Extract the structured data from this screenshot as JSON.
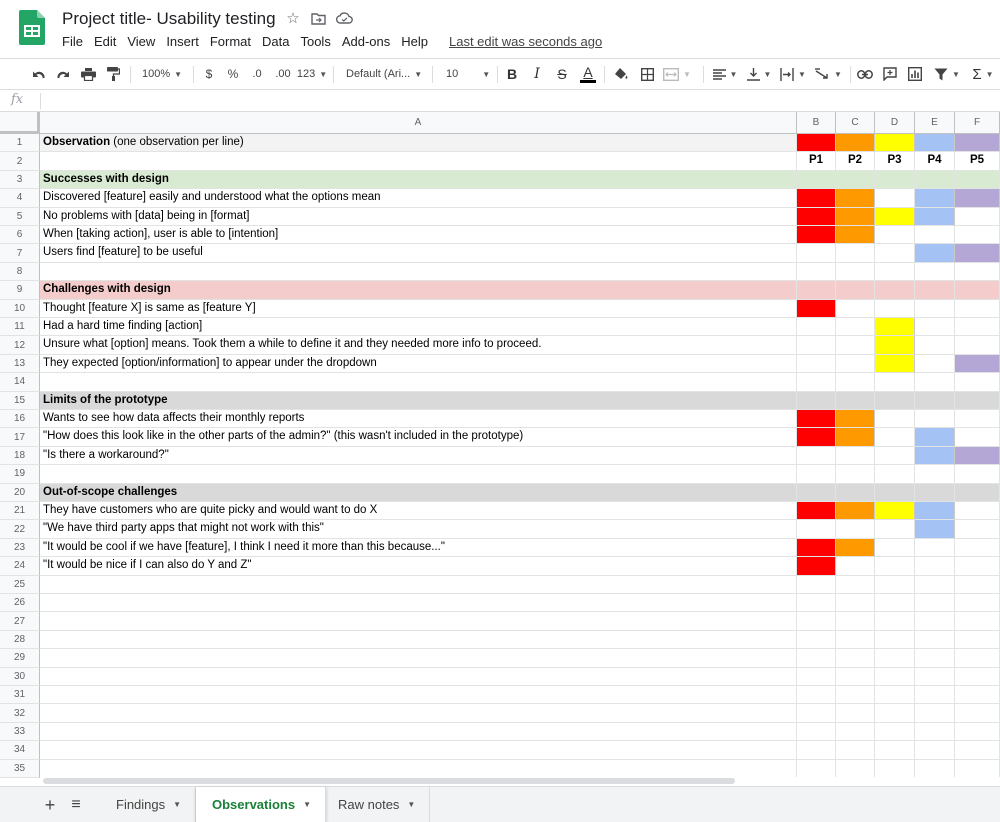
{
  "app": {
    "title": "Project title- Usability testing",
    "last_edit": "Last edit was seconds ago",
    "menu": [
      "File",
      "Edit",
      "View",
      "Insert",
      "Format",
      "Data",
      "Tools",
      "Add-ons",
      "Help"
    ]
  },
  "toolbar": {
    "zoom": "100%",
    "currency": "$",
    "percent": "%",
    "decrease_decimals": ".0",
    "increase_decimals": ".00",
    "more_formats": "123",
    "font": "Default (Ari...",
    "font_size": "10",
    "bold": "B",
    "italic": "I",
    "strikethrough": "S",
    "text_color": "A",
    "sum": "Σ"
  },
  "formula_bar": {
    "label": "fx",
    "value": ""
  },
  "colors": {
    "red": "#ff0000",
    "orange": "#ff9900",
    "yellow": "#ffff00",
    "blue": "#a4c2f4",
    "purple": "#b4a7d6",
    "green_band": "#d9ead3",
    "red_band": "#f4cccc",
    "gray_band": "#d9d9d9",
    "header_gray": "#f3f3f3",
    "active_tab": "#188038"
  },
  "grid": {
    "columns": [
      "A",
      "B",
      "C",
      "D",
      "E",
      "F"
    ],
    "row_numbers": [
      "1",
      "2",
      "3",
      "4",
      "5",
      "6",
      "7",
      "8",
      "9",
      "10",
      "11",
      "12",
      "13",
      "14",
      "15",
      "16",
      "17",
      "18",
      "19",
      "20",
      "21",
      "22",
      "23",
      "24",
      "25",
      "26",
      "27",
      "28",
      "29",
      "30",
      "31",
      "32",
      "33",
      "34",
      "35"
    ],
    "participants": [
      "P1",
      "P2",
      "P3",
      "P4",
      "P5"
    ],
    "header_cell": {
      "bold": "Observation",
      "rest": " (one observation per line)"
    },
    "rows": [
      {
        "text": "",
        "type": "header",
        "marks": [
          1,
          1,
          1,
          1,
          1
        ]
      },
      {
        "text": "",
        "type": "participants",
        "marks": [
          0,
          0,
          0,
          0,
          0
        ]
      },
      {
        "text": "Successes with design",
        "type": "section-green",
        "marks": [
          0,
          0,
          0,
          0,
          0
        ]
      },
      {
        "text": "Discovered [feature] easily and understood what the options mean",
        "type": "normal",
        "marks": [
          1,
          1,
          0,
          1,
          1
        ]
      },
      {
        "text": "No problems with [data] being in [format]",
        "type": "normal",
        "marks": [
          1,
          1,
          1,
          1,
          0
        ]
      },
      {
        "text": "When [taking action], user is able to [intention]",
        "type": "normal",
        "marks": [
          1,
          1,
          0,
          0,
          0
        ]
      },
      {
        "text": "Users find [feature] to be useful",
        "type": "normal",
        "marks": [
          0,
          0,
          0,
          1,
          1
        ]
      },
      {
        "text": "",
        "type": "normal",
        "marks": [
          0,
          0,
          0,
          0,
          0
        ]
      },
      {
        "text": "Challenges with design",
        "type": "section-red",
        "marks": [
          0,
          0,
          0,
          0,
          0
        ]
      },
      {
        "text": "Thought [feature X] is same as [feature Y]",
        "type": "normal",
        "marks": [
          1,
          0,
          0,
          0,
          0
        ]
      },
      {
        "text": "Had a hard time finding [action]",
        "type": "normal",
        "marks": [
          0,
          0,
          1,
          0,
          0
        ]
      },
      {
        "text": "Unsure what [option] means. Took them a while to define it and they needed more info to proceed.",
        "type": "normal",
        "marks": [
          0,
          0,
          1,
          0,
          0
        ]
      },
      {
        "text": "They expected [option/information] to appear under the dropdown",
        "type": "normal",
        "marks": [
          0,
          0,
          1,
          0,
          1
        ]
      },
      {
        "text": "",
        "type": "normal",
        "marks": [
          0,
          0,
          0,
          0,
          0
        ]
      },
      {
        "text": "Limits of the prototype",
        "type": "section-gray",
        "marks": [
          0,
          0,
          0,
          0,
          0
        ]
      },
      {
        "text": "Wants to see how data affects their monthly reports",
        "type": "normal",
        "marks": [
          1,
          1,
          0,
          0,
          0
        ]
      },
      {
        "text": "\"How does this look like in the other parts of the admin?\" (this wasn't included in the prototype)",
        "type": "normal",
        "marks": [
          1,
          1,
          0,
          1,
          0
        ]
      },
      {
        "text": "\"Is there a workaround?\"",
        "type": "normal",
        "marks": [
          0,
          0,
          0,
          1,
          1
        ]
      },
      {
        "text": "",
        "type": "normal",
        "marks": [
          0,
          0,
          0,
          0,
          0
        ]
      },
      {
        "text": "Out-of-scope challenges",
        "type": "section-gray",
        "marks": [
          0,
          0,
          0,
          0,
          0
        ]
      },
      {
        "text": "They have customers who are quite picky and would want to do X",
        "type": "normal",
        "marks": [
          1,
          1,
          1,
          1,
          0
        ]
      },
      {
        "text": "\"We have third party apps that might not work with this\"",
        "type": "normal",
        "marks": [
          0,
          0,
          0,
          1,
          0
        ]
      },
      {
        "text": "\"It would be cool if we have [feature], I think I need it more than this because...\"",
        "type": "normal",
        "marks": [
          1,
          1,
          0,
          0,
          0
        ]
      },
      {
        "text": "\"It would be nice if I can also do Y and Z\"",
        "type": "normal",
        "marks": [
          1,
          0,
          0,
          0,
          0
        ]
      }
    ]
  },
  "sheets": {
    "add_icon": "+",
    "list_icon": "≡",
    "tabs": [
      "Findings",
      "Observations",
      "Raw notes"
    ],
    "active_tab": "Observations"
  }
}
